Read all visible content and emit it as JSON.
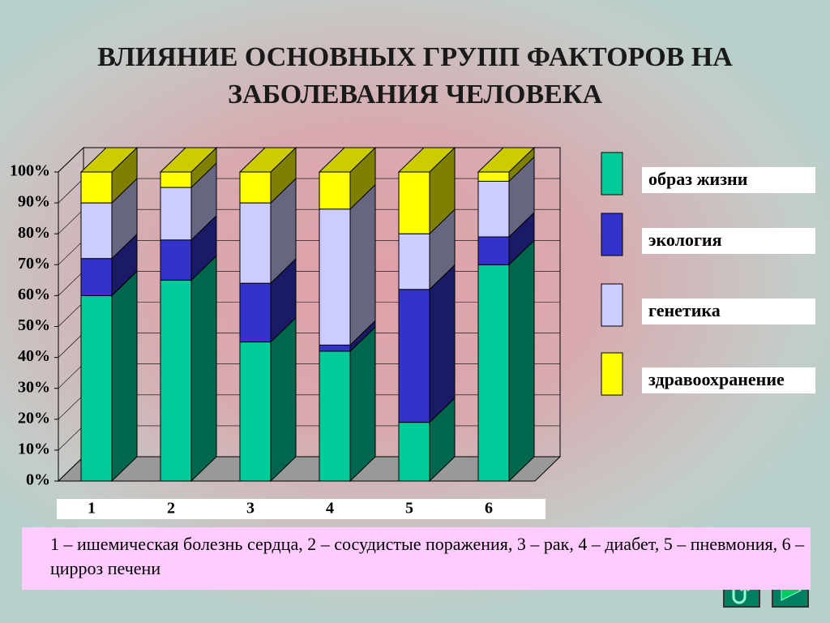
{
  "chart_data": {
    "type": "bar3d_stacked",
    "title": "ВЛИЯНИЕ ОСНОВНЫХ ГРУПП ФАКТОРОВ НА ЗАБОЛЕВАНИЯ ЧЕЛОВЕКА",
    "categories": [
      "1",
      "2",
      "3",
      "4",
      "5",
      "6"
    ],
    "series": [
      {
        "name": "образ жизни",
        "color": "#00cc99",
        "values": [
          60,
          65,
          45,
          42,
          19,
          70
        ]
      },
      {
        "name": "экология",
        "color": "#3333cc",
        "values": [
          12,
          13,
          19,
          2,
          43,
          9
        ]
      },
      {
        "name": "генетика",
        "color": "#ccccff",
        "values": [
          18,
          17,
          26,
          44,
          18,
          18
        ]
      },
      {
        "name": "здравоохранение",
        "color": "#ffff00",
        "values": [
          10,
          5,
          10,
          12,
          20,
          3
        ]
      }
    ],
    "ylim": [
      0,
      100
    ],
    "yticks": [
      {
        "value": 0,
        "label": "0%"
      },
      {
        "value": 10,
        "label": "10%"
      },
      {
        "value": 20,
        "label": "20%"
      },
      {
        "value": 30,
        "label": "30%"
      },
      {
        "value": 40,
        "label": "40%"
      },
      {
        "value": 50,
        "label": "50%"
      },
      {
        "value": 60,
        "label": "60%"
      },
      {
        "value": 70,
        "label": "70%"
      },
      {
        "value": 80,
        "label": "80%"
      },
      {
        "value": 90,
        "label": "90%"
      },
      {
        "value": 100,
        "label": "100%"
      }
    ],
    "grid": true,
    "legend": "right",
    "note": "1 – ишемическая болезнь сердца, 2 – сосудистые поражения, 3 – рак, 4 – диабет, 5 – пневмония, 6 – цирроз печени"
  }
}
